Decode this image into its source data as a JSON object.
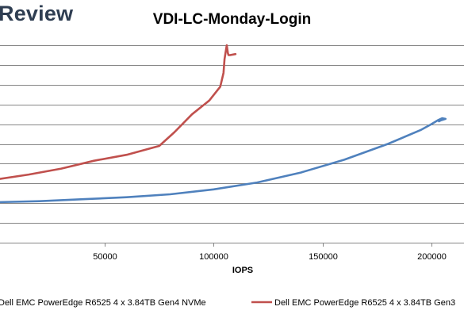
{
  "brand": {
    "text": "Review"
  },
  "chart_data": {
    "type": "line",
    "title": "VDI-LC-Monday-Login",
    "xlabel": "IOPS",
    "ylabel": "",
    "xlim": [
      0,
      215000
    ],
    "ylim": [
      0,
      10
    ],
    "x_ticks": [
      50000,
      100000,
      150000,
      200000
    ],
    "x_tick_labels": [
      "50000",
      "100000",
      "150000",
      "200000"
    ],
    "grid": "horizontal",
    "legend_position": "bottom",
    "series": [
      {
        "name": "Dell EMC PowerEdge R6525 4 x 3.84TB Gen4 NVMe",
        "color": "#4f81bd",
        "points": [
          [
            0,
            2.05
          ],
          [
            20000,
            2.1
          ],
          [
            40000,
            2.2
          ],
          [
            60000,
            2.3
          ],
          [
            80000,
            2.45
          ],
          [
            100000,
            2.7
          ],
          [
            120000,
            3.05
          ],
          [
            140000,
            3.55
          ],
          [
            160000,
            4.2
          ],
          [
            180000,
            5.0
          ],
          [
            195000,
            5.7
          ],
          [
            200000,
            6.0
          ],
          [
            203000,
            6.2
          ],
          [
            205000,
            6.3
          ],
          [
            206500,
            6.27
          ],
          [
            204500,
            6.2
          ],
          [
            203500,
            6.15
          ]
        ]
      },
      {
        "name": "Dell EMC PowerEdge R6525 4 x 3.84TB Gen3",
        "color": "#c0504d",
        "points": [
          [
            0,
            3.2
          ],
          [
            15000,
            3.45
          ],
          [
            30000,
            3.75
          ],
          [
            45000,
            4.15
          ],
          [
            60000,
            4.45
          ],
          [
            75000,
            4.9
          ],
          [
            82000,
            5.6
          ],
          [
            90000,
            6.5
          ],
          [
            98000,
            7.2
          ],
          [
            103000,
            7.9
          ],
          [
            104500,
            8.6
          ],
          [
            105000,
            9.3
          ],
          [
            106000,
            10.0
          ],
          [
            106500,
            9.6
          ],
          [
            106800,
            9.5
          ],
          [
            107500,
            9.5
          ],
          [
            110000,
            9.55
          ]
        ]
      }
    ]
  }
}
